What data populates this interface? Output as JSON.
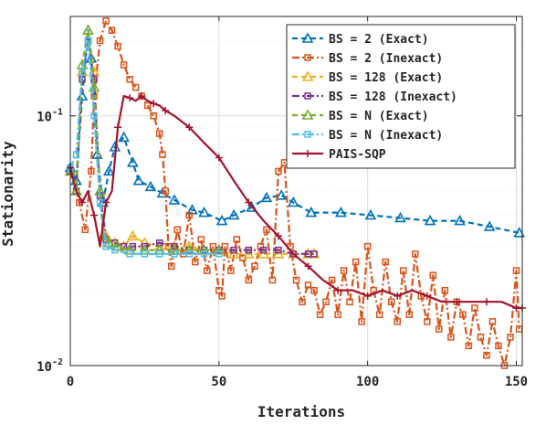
{
  "chart_data": {
    "type": "line",
    "title": "",
    "xlabel": "Iterations",
    "ylabel": "Stationarity",
    "xlim": [
      0,
      152
    ],
    "ylim": [
      0.01,
      0.25
    ],
    "yscale": "log",
    "grid": true,
    "legend_position": "top-right",
    "x_ticks": [
      0,
      50,
      100,
      150
    ],
    "x_tick_labels": [
      "0",
      "50",
      "100",
      "150"
    ],
    "y_ticks": [
      0.01,
      0.1
    ],
    "y_tick_labels": [
      {
        "base": "10",
        "exp": "-2"
      },
      {
        "base": "10",
        "exp": "-1"
      }
    ],
    "series": [
      {
        "name": "BS = 2 (Exact)",
        "color": "#0072BD",
        "dash": "6,4",
        "marker": "triangle",
        "x": [
          0,
          2,
          4,
          6,
          7,
          9,
          11,
          13,
          15,
          18,
          21,
          23,
          27,
          31,
          35,
          41,
          45,
          51,
          55,
          61,
          66,
          71,
          75,
          81,
          91,
          101,
          111,
          121,
          131,
          141,
          151
        ],
        "y": [
          0.062,
          0.055,
          0.12,
          0.22,
          0.17,
          0.07,
          0.045,
          0.06,
          0.075,
          0.082,
          0.065,
          0.055,
          0.052,
          0.049,
          0.046,
          0.042,
          0.041,
          0.038,
          0.04,
          0.043,
          0.047,
          0.048,
          0.045,
          0.041,
          0.041,
          0.04,
          0.039,
          0.038,
          0.038,
          0.036,
          0.034
        ]
      },
      {
        "name": "BS = 2 (Inexact)",
        "color": "#D95319",
        "dash": "8,3,2,3",
        "marker": "square",
        "x": [
          0,
          3,
          5,
          7,
          8,
          10,
          12,
          14,
          16,
          18,
          20,
          22,
          24,
          26,
          28,
          30,
          31,
          32,
          33,
          34,
          36,
          38,
          40,
          42,
          44,
          46,
          48,
          50,
          51,
          52,
          54,
          56,
          58,
          60,
          62,
          64,
          66,
          68,
          70,
          72,
          74,
          76,
          78,
          80,
          82,
          84,
          86,
          88,
          90,
          92,
          94,
          96,
          98,
          100,
          102,
          104,
          106,
          108,
          110,
          112,
          114,
          116,
          118,
          120,
          122,
          124,
          126,
          128,
          130,
          132,
          134,
          136,
          138,
          140,
          142,
          144,
          146,
          148,
          150,
          151
        ],
        "y": [
          0.06,
          0.045,
          0.035,
          0.06,
          0.12,
          0.2,
          0.24,
          0.22,
          0.19,
          0.16,
          0.14,
          0.13,
          0.12,
          0.11,
          0.1,
          0.085,
          0.07,
          0.05,
          0.03,
          0.025,
          0.035,
          0.028,
          0.04,
          0.026,
          0.032,
          0.024,
          0.03,
          0.02,
          0.019,
          0.03,
          0.024,
          0.032,
          0.027,
          0.022,
          0.025,
          0.03,
          0.035,
          0.022,
          0.06,
          0.065,
          0.03,
          0.022,
          0.018,
          0.021,
          0.02,
          0.016,
          0.018,
          0.022,
          0.016,
          0.024,
          0.018,
          0.026,
          0.015,
          0.03,
          0.02,
          0.016,
          0.026,
          0.018,
          0.015,
          0.024,
          0.016,
          0.028,
          0.019,
          0.015,
          0.023,
          0.014,
          0.02,
          0.013,
          0.018,
          0.016,
          0.012,
          0.017,
          0.013,
          0.011,
          0.015,
          0.012,
          0.01,
          0.013,
          0.024,
          0.014
        ]
      },
      {
        "name": "BS = 128 (Exact)",
        "color": "#EDB120",
        "dash": "6,4",
        "marker": "triangle",
        "x": [
          0,
          2,
          4,
          6,
          8,
          10,
          12,
          15,
          18,
          21,
          25,
          30,
          35,
          40,
          45,
          50,
          55,
          60,
          65,
          70,
          75,
          80,
          82
        ],
        "y": [
          0.06,
          0.05,
          0.15,
          0.22,
          0.15,
          0.05,
          0.033,
          0.031,
          0.03,
          0.033,
          0.031,
          0.03,
          0.03,
          0.03,
          0.029,
          0.029,
          0.028,
          0.028,
          0.028,
          0.028,
          0.028,
          0.028,
          0.028
        ]
      },
      {
        "name": "BS = 128 (Inexact)",
        "color": "#7E2F8E",
        "dash": "8,3,2,3",
        "marker": "square",
        "x": [
          0,
          2,
          4,
          6,
          8,
          10,
          12,
          15,
          18,
          21,
          25,
          30,
          35,
          40,
          45,
          50,
          55,
          60,
          65,
          70,
          75,
          80,
          82
        ],
        "y": [
          0.06,
          0.05,
          0.14,
          0.2,
          0.14,
          0.048,
          0.032,
          0.031,
          0.03,
          0.03,
          0.03,
          0.031,
          0.03,
          0.029,
          0.029,
          0.029,
          0.029,
          0.029,
          0.029,
          0.029,
          0.028,
          0.028,
          0.028
        ]
      },
      {
        "name": "BS = N (Exact)",
        "color": "#77AC30",
        "dash": "6,4",
        "marker": "triangle",
        "x": [
          0,
          2,
          4,
          6,
          8,
          10,
          11,
          13,
          16,
          20,
          25,
          30,
          35,
          40,
          45,
          50
        ],
        "y": [
          0.06,
          0.05,
          0.16,
          0.22,
          0.13,
          0.05,
          0.033,
          0.031,
          0.03,
          0.029,
          0.029,
          0.029,
          0.029,
          0.029,
          0.029,
          0.029
        ]
      },
      {
        "name": "BS = N (Inexact)",
        "color": "#4DBEEE",
        "dash": "8,3,2,3",
        "marker": "square",
        "x": [
          0,
          2,
          4,
          6,
          8,
          10,
          12,
          15,
          20,
          25,
          30,
          35,
          40,
          45,
          50
        ],
        "y": [
          0.062,
          0.07,
          0.15,
          0.2,
          0.1,
          0.045,
          0.03,
          0.029,
          0.028,
          0.028,
          0.028,
          0.028,
          0.028,
          0.028,
          0.028
        ]
      },
      {
        "name": "PAIS-SQP",
        "color": "#A2142F",
        "dash": "",
        "marker": "plus",
        "x": [
          0,
          2,
          4,
          6,
          8,
          10,
          12,
          14,
          16,
          18,
          20,
          22,
          24,
          26,
          28,
          30,
          32,
          35,
          40,
          45,
          50,
          55,
          60,
          65,
          70,
          75,
          80,
          85,
          90,
          95,
          100,
          105,
          110,
          115,
          120,
          125,
          130,
          135,
          140,
          145,
          150,
          152
        ],
        "y": [
          0.062,
          0.05,
          0.045,
          0.05,
          0.04,
          0.03,
          0.045,
          0.05,
          0.09,
          0.12,
          0.118,
          0.115,
          0.12,
          0.115,
          0.112,
          0.11,
          0.105,
          0.1,
          0.09,
          0.078,
          0.068,
          0.055,
          0.045,
          0.038,
          0.033,
          0.028,
          0.025,
          0.022,
          0.02,
          0.02,
          0.019,
          0.02,
          0.019,
          0.02,
          0.019,
          0.018,
          0.018,
          0.018,
          0.018,
          0.018,
          0.017,
          0.017
        ]
      }
    ]
  }
}
